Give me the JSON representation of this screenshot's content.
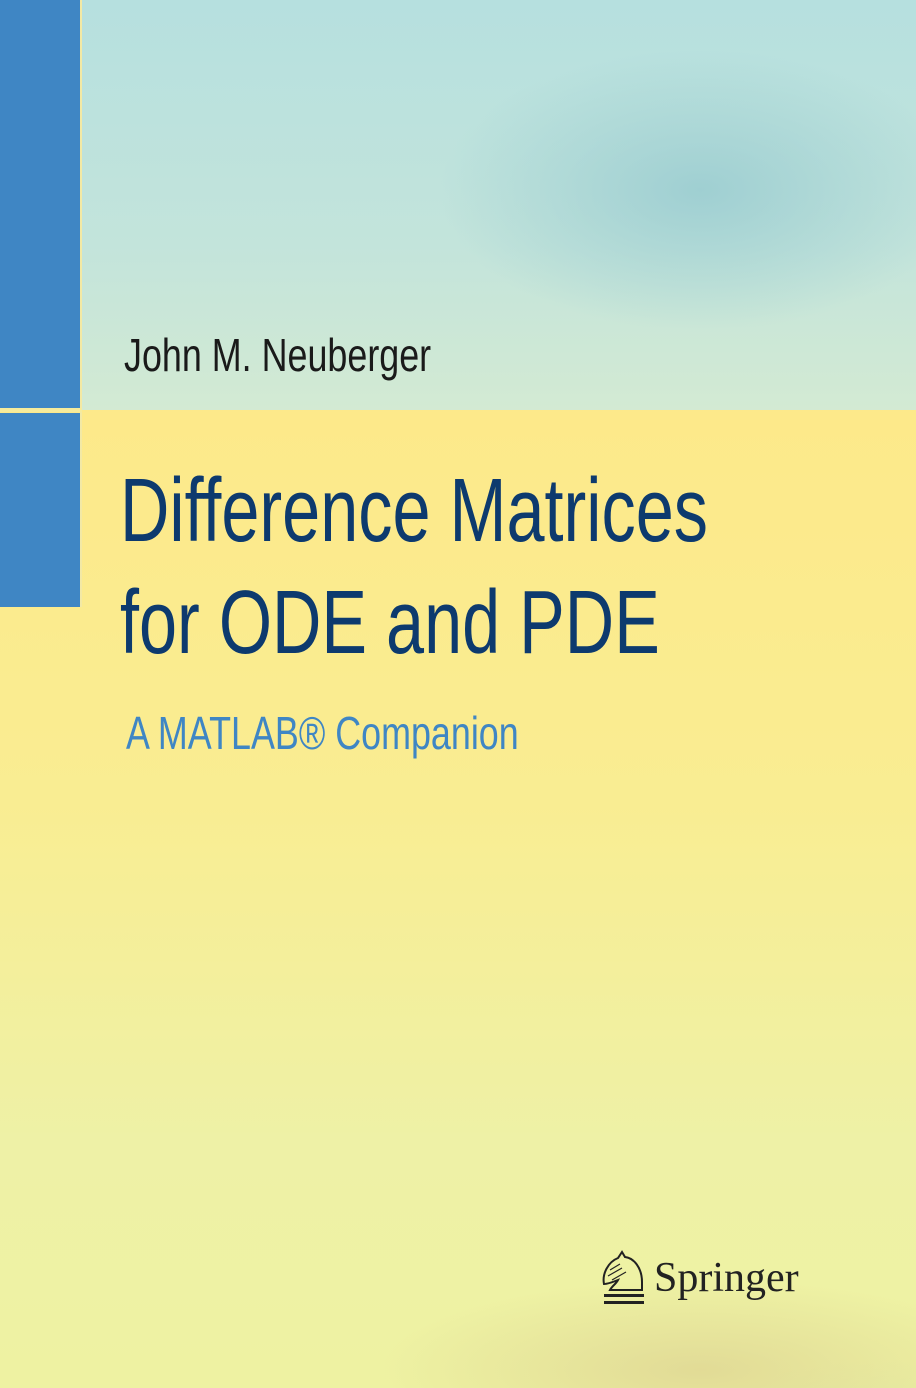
{
  "cover": {
    "author": "John M. Neuberger",
    "title_line1": "Difference Matrices",
    "title_line2": "for ODE and PDE",
    "subtitle": "A MATLAB® Companion",
    "publisher": "Springer",
    "publisher_logo_icon": "knight-chess-piece-icon"
  },
  "colors": {
    "accent_bar": "#3f86c4",
    "title": "#0d3a6e",
    "subtitle": "#3f86c4"
  }
}
